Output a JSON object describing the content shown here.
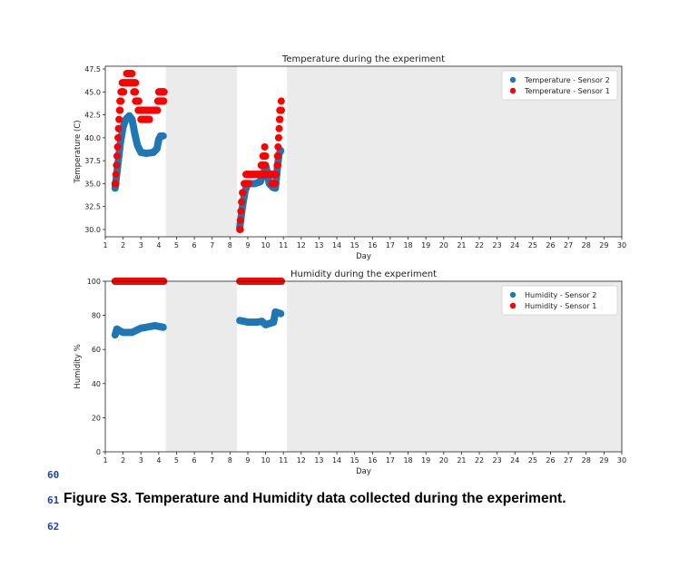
{
  "chart_data": [
    {
      "type": "scatter",
      "title": "Temperature during the experiment",
      "xlabel": "Day",
      "ylabel": "Temperature (C)",
      "xlim": [
        1,
        30
      ],
      "ylim": [
        29.2,
        47.8
      ],
      "xticks": [
        1,
        2,
        3,
        4,
        5,
        6,
        7,
        8,
        9,
        10,
        11,
        12,
        13,
        14,
        15,
        16,
        17,
        18,
        19,
        20,
        21,
        22,
        23,
        24,
        25,
        26,
        27,
        28,
        29,
        30
      ],
      "yticks": [
        "30.0",
        "32.5",
        "35.0",
        "37.5",
        "40.0",
        "42.5",
        "45.0",
        "47.5"
      ],
      "shaded_ranges": [
        [
          4.4,
          8.4
        ],
        [
          11.2,
          30
        ]
      ],
      "legend_position": "top-right",
      "series": [
        {
          "name": "Temperature - Sensor 2",
          "color": "#1f77b4",
          "segments": [
            [
              [
                1.55,
                34.5
              ],
              [
                1.7,
                37
              ],
              [
                1.85,
                39.5
              ],
              [
                2.0,
                41.2
              ],
              [
                2.15,
                42.0
              ],
              [
                2.35,
                42.4
              ],
              [
                2.5,
                42.0
              ],
              [
                2.65,
                40.5
              ],
              [
                2.8,
                39.2
              ],
              [
                3.0,
                38.4
              ],
              [
                3.3,
                38.3
              ],
              [
                3.7,
                38.4
              ],
              [
                3.9,
                38.8
              ],
              [
                4.0,
                39.8
              ],
              [
                4.1,
                40.2
              ],
              [
                4.25,
                40.2
              ]
            ],
            [
              [
                8.55,
                30.2
              ],
              [
                8.7,
                32.5
              ],
              [
                8.85,
                34.2
              ],
              [
                9.0,
                35.0
              ],
              [
                9.4,
                35.0
              ],
              [
                9.7,
                35.2
              ],
              [
                9.9,
                36.2
              ],
              [
                10.0,
                37.0
              ],
              [
                10.1,
                36.2
              ],
              [
                10.2,
                35.0
              ],
              [
                10.4,
                34.6
              ],
              [
                10.55,
                34.5
              ],
              [
                10.65,
                36.5
              ],
              [
                10.75,
                38.2
              ],
              [
                10.85,
                38.6
              ]
            ]
          ]
        },
        {
          "name": "Temperature - Sensor 1",
          "color": "#ff0000",
          "runs": [
            {
              "y": 35,
              "x0": 1.55,
              "x1": 1.6
            },
            {
              "y": 36,
              "x0": 1.6,
              "x1": 1.62
            },
            {
              "y": 37,
              "x0": 1.63,
              "x1": 1.65
            },
            {
              "y": 38,
              "x0": 1.66,
              "x1": 1.68
            },
            {
              "y": 39,
              "x0": 1.69,
              "x1": 1.71
            },
            {
              "y": 40,
              "x0": 1.72,
              "x1": 1.74
            },
            {
              "y": 41,
              "x0": 1.74,
              "x1": 1.76
            },
            {
              "y": 42,
              "x0": 1.77,
              "x1": 1.79
            },
            {
              "y": 43,
              "x0": 1.8,
              "x1": 1.84
            },
            {
              "y": 44,
              "x0": 1.82,
              "x1": 1.88
            },
            {
              "y": 45,
              "x0": 1.88,
              "x1": 2.05
            },
            {
              "y": 46,
              "x0": 1.95,
              "x1": 2.7
            },
            {
              "y": 47,
              "x0": 2.2,
              "x1": 2.5
            },
            {
              "y": 45,
              "x0": 2.6,
              "x1": 2.7
            },
            {
              "y": 44,
              "x0": 2.7,
              "x1": 2.9
            },
            {
              "y": 43,
              "x0": 2.85,
              "x1": 3.95
            },
            {
              "y": 42,
              "x0": 3.0,
              "x1": 3.5
            },
            {
              "y": 44,
              "x0": 3.95,
              "x1": 4.3
            },
            {
              "y": 45,
              "x0": 4.0,
              "x1": 4.3
            },
            {
              "y": 30,
              "x0": 8.55,
              "x1": 8.58
            },
            {
              "y": 31,
              "x0": 8.58,
              "x1": 8.6
            },
            {
              "y": 32,
              "x0": 8.61,
              "x1": 8.63
            },
            {
              "y": 33,
              "x0": 8.65,
              "x1": 8.67
            },
            {
              "y": 34,
              "x0": 8.7,
              "x1": 8.75
            },
            {
              "y": 35,
              "x0": 8.8,
              "x1": 9.05
            },
            {
              "y": 36,
              "x0": 8.9,
              "x1": 10.05
            },
            {
              "y": 37,
              "x0": 9.75,
              "x1": 10.0
            },
            {
              "y": 38,
              "x0": 9.85,
              "x1": 10.0
            },
            {
              "y": 39,
              "x0": 9.95,
              "x1": 9.97
            },
            {
              "y": 36,
              "x0": 10.2,
              "x1": 10.6
            },
            {
              "y": 35,
              "x0": 10.35,
              "x1": 10.55
            },
            {
              "y": 37,
              "x0": 10.65,
              "x1": 10.7
            },
            {
              "y": 38,
              "x0": 10.67,
              "x1": 10.7
            },
            {
              "y": 39,
              "x0": 10.7,
              "x1": 10.72
            },
            {
              "y": 40,
              "x0": 10.73,
              "x1": 10.75
            },
            {
              "y": 41,
              "x0": 10.76,
              "x1": 10.78
            },
            {
              "y": 42,
              "x0": 10.78,
              "x1": 10.82
            },
            {
              "y": 43,
              "x0": 10.8,
              "x1": 10.9
            },
            {
              "y": 44,
              "x0": 10.88,
              "x1": 10.9
            }
          ]
        }
      ]
    },
    {
      "type": "scatter",
      "title": "Humidity during the experiment",
      "xlabel": "Day",
      "ylabel": "Humidity %",
      "xlim": [
        1,
        30
      ],
      "ylim": [
        0,
        100
      ],
      "xticks": [
        1,
        2,
        3,
        4,
        5,
        6,
        7,
        8,
        9,
        10,
        11,
        12,
        13,
        14,
        15,
        16,
        17,
        18,
        19,
        20,
        21,
        22,
        23,
        24,
        25,
        26,
        27,
        28,
        29,
        30
      ],
      "yticks": [
        "0",
        "20",
        "40",
        "60",
        "80",
        "100"
      ],
      "shaded_ranges": [
        [
          4.4,
          8.4
        ],
        [
          11.2,
          30
        ]
      ],
      "legend_position": "top-right",
      "series": [
        {
          "name": "Humidity - Sensor 2",
          "color": "#1f77b4",
          "segments": [
            [
              [
                1.55,
                68.5
              ],
              [
                1.65,
                72
              ],
              [
                1.8,
                71
              ],
              [
                2.0,
                70
              ],
              [
                2.5,
                70
              ],
              [
                2.8,
                71.5
              ],
              [
                3.0,
                72.5
              ],
              [
                3.4,
                73.2
              ],
              [
                3.8,
                74
              ],
              [
                4.0,
                73.5
              ],
              [
                4.25,
                73
              ]
            ],
            [
              [
                8.55,
                77
              ],
              [
                8.8,
                76.5
              ],
              [
                9.0,
                76
              ],
              [
                9.5,
                76
              ],
              [
                9.8,
                76.5
              ],
              [
                10.0,
                74.5
              ],
              [
                10.3,
                75.5
              ],
              [
                10.45,
                76
              ],
              [
                10.55,
                82
              ],
              [
                10.7,
                81.5
              ],
              [
                10.85,
                81
              ]
            ]
          ]
        },
        {
          "name": "Humidity - Sensor 1",
          "color": "#ff0000",
          "runs": [
            {
              "y": 100,
              "x0": 1.55,
              "x1": 4.3
            },
            {
              "y": 100,
              "x0": 8.55,
              "x1": 10.9
            }
          ]
        }
      ]
    }
  ],
  "document": {
    "line_numbers": [
      "60",
      "61",
      "62"
    ],
    "caption": "Figure S3. Temperature and Humidity data collected during the experiment."
  }
}
